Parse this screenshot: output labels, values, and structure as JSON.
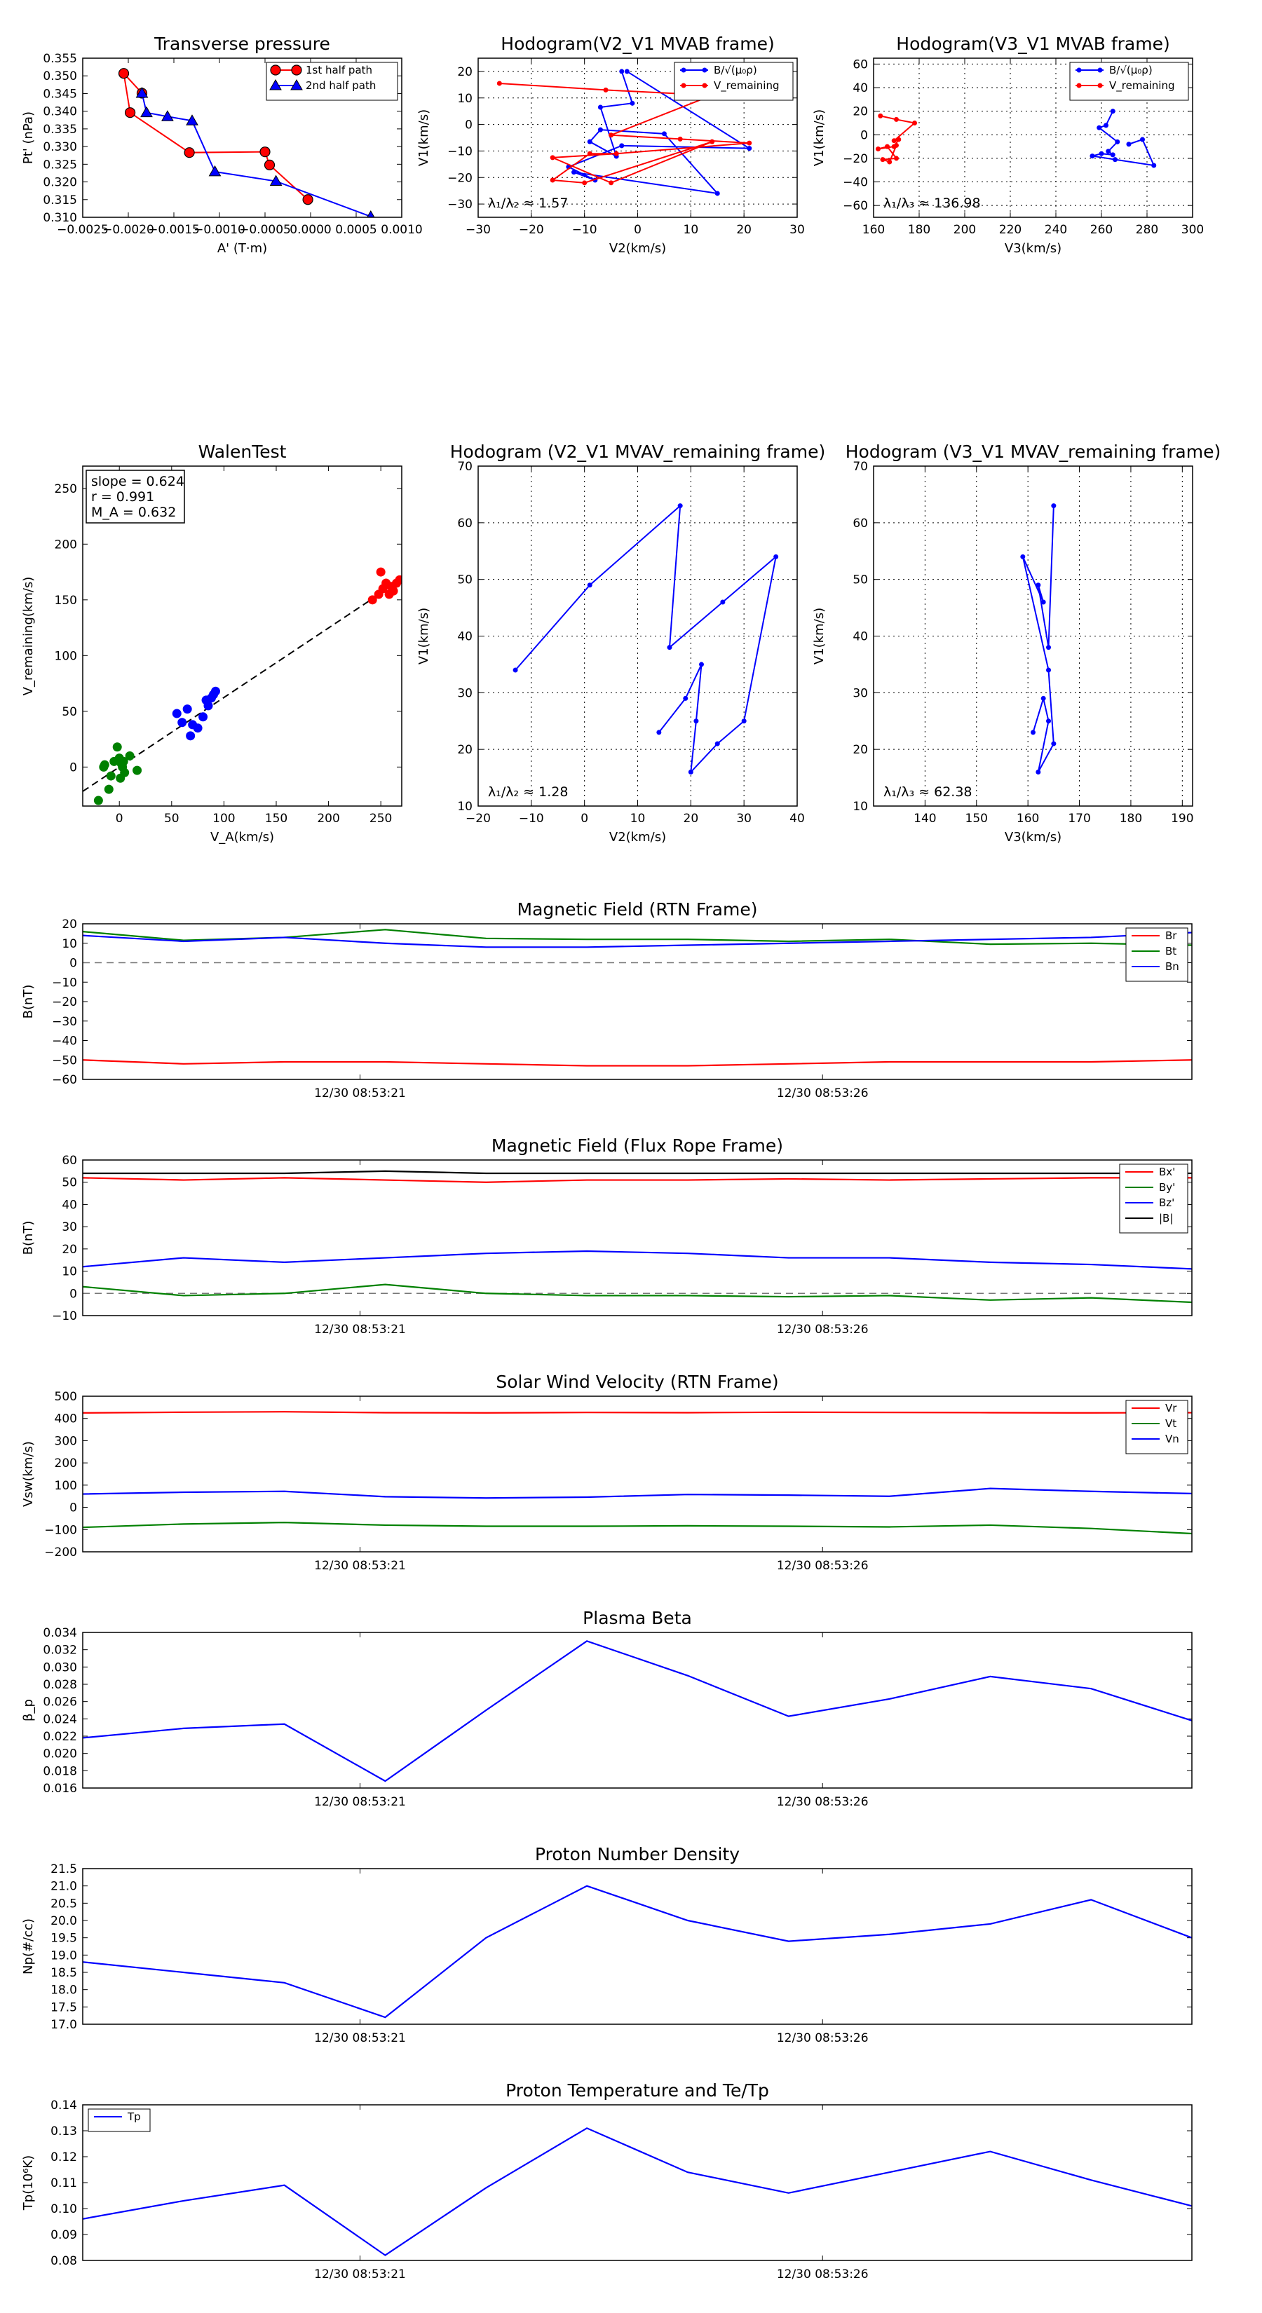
{
  "chart_data": [
    {
      "id": "tp",
      "type": "line",
      "title": "Transverse pressure",
      "xlabel": "A' (T·m)",
      "ylabel": "Pt' (nPa)",
      "xlim": [
        -0.0025,
        0.001
      ],
      "ylim": [
        0.31,
        0.355
      ],
      "xticks": [
        -0.0025,
        -0.002,
        -0.0015,
        -0.001,
        -0.0005,
        0.0,
        0.0005,
        0.001
      ],
      "xtick_labels": [
        "−0.0025",
        "−0.0020",
        "−0.0015",
        "−0.0010",
        "−0.0005",
        "0.0000",
        "0.0005",
        "0.0010"
      ],
      "yticks": [
        0.31,
        0.315,
        0.32,
        0.325,
        0.33,
        0.335,
        0.34,
        0.345,
        0.35,
        0.355
      ],
      "ytick_labels": [
        "0.310",
        "0.315",
        "0.320",
        "0.325",
        "0.330",
        "0.335",
        "0.340",
        "0.345",
        "0.350",
        "0.355"
      ],
      "grid": false,
      "legend": "top-right",
      "series": [
        {
          "name": "1st half path",
          "color": "#ff0000",
          "marker": "circle",
          "x": [
            -3e-05,
            -0.00045,
            -0.0005,
            -0.00133,
            -0.00198,
            -0.00205,
            -0.00185
          ],
          "y": [
            0.315,
            0.3248,
            0.3285,
            0.3283,
            0.3396,
            0.3507,
            0.3451
          ]
        },
        {
          "name": "2nd half path",
          "color": "#0000ff",
          "marker": "triangle",
          "x": [
            -0.00185,
            -0.0018,
            -0.00157,
            -0.0013,
            -0.00105,
            -0.00038,
            0.00066
          ],
          "y": [
            0.3451,
            0.3396,
            0.3385,
            0.3373,
            0.3229,
            0.3202,
            0.3102
          ]
        }
      ]
    },
    {
      "id": "h1",
      "type": "line",
      "title": "Hodogram(V2_V1 MVAB frame)",
      "xlabel": "V2(km/s)",
      "ylabel": "V1(km/s)",
      "xlim": [
        -30,
        30
      ],
      "ylim": [
        -35,
        25
      ],
      "xticks": [
        -30,
        -20,
        -10,
        0,
        10,
        20,
        30
      ],
      "xtick_labels": [
        "−30",
        "−20",
        "−10",
        "0",
        "10",
        "20",
        "30"
      ],
      "yticks": [
        -30,
        -20,
        -10,
        0,
        10,
        20
      ],
      "ytick_labels": [
        "−30",
        "−20",
        "−10",
        "0",
        "10",
        "20"
      ],
      "grid": true,
      "legend": "top-right",
      "annotation": "λ₁/λ₂ ≈ 1.57",
      "series": [
        {
          "name": "B/√(μ₀ρ)",
          "color": "#0000ff",
          "marker": "dot",
          "x": [
            -3,
            -1,
            -7,
            -4,
            -9,
            -7,
            5,
            15,
            -12,
            -8,
            -13,
            -3,
            21,
            -2
          ],
          "y": [
            20,
            8,
            6.5,
            -12,
            -6.5,
            -2,
            -3.5,
            -26,
            -18,
            -21,
            -16,
            -8,
            -9,
            20
          ]
        },
        {
          "name": "V_remaining",
          "color": "#ff0000",
          "marker": "dot",
          "x": [
            -26,
            -6,
            14,
            -5,
            8,
            21,
            -4,
            -9,
            -16,
            -10,
            14,
            -5,
            -16,
            -4
          ],
          "y": [
            15.5,
            13,
            11,
            -4,
            -5.5,
            -7,
            -11,
            -11,
            -21,
            -22,
            -6.5,
            -22,
            -12.5,
            -11
          ]
        }
      ]
    },
    {
      "id": "h2",
      "type": "line",
      "title": "Hodogram(V3_V1 MVAB frame)",
      "xlabel": "V3(km/s)",
      "ylabel": "V1(km/s)",
      "xlim": [
        160,
        300
      ],
      "ylim": [
        -70,
        65
      ],
      "xticks": [
        160,
        180,
        200,
        220,
        240,
        260,
        280,
        300
      ],
      "xtick_labels": [
        "160",
        "180",
        "200",
        "220",
        "240",
        "260",
        "280",
        "300"
      ],
      "yticks": [
        -60,
        -40,
        -20,
        0,
        20,
        40,
        60
      ],
      "ytick_labels": [
        "−60",
        "−40",
        "−20",
        "0",
        "20",
        "40",
        "60"
      ],
      "grid": true,
      "legend": "top-right",
      "annotation": "λ₁/λ₃ ≈ 136.98",
      "series": [
        {
          "name": "B/√(μ₀ρ)",
          "color": "#0000ff",
          "marker": "dot",
          "x": [
            265,
            262,
            259,
            267,
            263,
            265,
            260,
            256,
            266,
            283,
            278,
            272
          ],
          "y": [
            20,
            8,
            6,
            -6,
            -14,
            -17,
            -16,
            -18,
            -21,
            -26,
            -4,
            -8
          ]
        },
        {
          "name": "V_remaining",
          "color": "#ff0000",
          "marker": "dot",
          "x": [
            163,
            170,
            178,
            169,
            171,
            169,
            162,
            166,
            170,
            164,
            167,
            170
          ],
          "y": [
            16,
            13,
            10,
            -5,
            -4,
            -10,
            -12,
            -10,
            -20,
            -21,
            -23,
            -9
          ]
        }
      ]
    },
    {
      "id": "wt",
      "type": "scatter",
      "title": "WalenTest",
      "xlabel": "V_A(km/s)",
      "ylabel": "V_remaining(km/s)",
      "xlim": [
        -35,
        270
      ],
      "ylim": [
        -35,
        270
      ],
      "xticks": [
        0,
        50,
        100,
        150,
        200,
        250
      ],
      "xtick_labels": [
        "0",
        "50",
        "100",
        "150",
        "200",
        "250"
      ],
      "yticks": [
        0,
        50,
        100,
        150,
        200,
        250
      ],
      "ytick_labels": [
        "0",
        "50",
        "100",
        "150",
        "200",
        "250"
      ],
      "grid": false,
      "stats": [
        "slope = 0.624",
        "r = 0.991",
        "M_A = 0.632"
      ],
      "fit": {
        "slope": 0.624,
        "intercept": 0,
        "x": [
          -35,
          255
        ]
      },
      "series": [
        {
          "name": "green",
          "color": "#008000",
          "x": [
            -10,
            -5,
            0,
            2,
            5,
            -8,
            3,
            -15,
            17,
            -2,
            -14,
            10,
            1,
            4,
            -20
          ],
          "y": [
            -20,
            5,
            8,
            3,
            -5,
            -8,
            0,
            0,
            -3,
            18,
            2,
            10,
            -10,
            5,
            -30
          ]
        },
        {
          "name": "blue",
          "color": "#0000ff",
          "x": [
            55,
            65,
            70,
            75,
            80,
            83,
            85,
            88,
            90,
            92,
            60,
            68
          ],
          "y": [
            48,
            52,
            38,
            35,
            45,
            60,
            55,
            62,
            65,
            68,
            40,
            28
          ]
        },
        {
          "name": "red",
          "color": "#ff0000",
          "x": [
            242,
            248,
            252,
            255,
            258,
            260,
            262,
            265,
            250,
            268
          ],
          "y": [
            150,
            155,
            160,
            165,
            155,
            162,
            158,
            165,
            175,
            168
          ]
        }
      ]
    },
    {
      "id": "h3",
      "type": "line",
      "title": "Hodogram (V2_V1 MVAV_remaining frame)",
      "xlabel": "V2(km/s)",
      "ylabel": "V1(km/s)",
      "xlim": [
        -20,
        40
      ],
      "ylim": [
        10,
        70
      ],
      "xticks": [
        -20,
        -10,
        0,
        10,
        20,
        30,
        40
      ],
      "xtick_labels": [
        "−20",
        "−10",
        "0",
        "10",
        "20",
        "30",
        "40"
      ],
      "yticks": [
        10,
        20,
        30,
        40,
        50,
        60,
        70
      ],
      "ytick_labels": [
        "10",
        "20",
        "30",
        "40",
        "50",
        "60",
        "70"
      ],
      "grid": true,
      "annotation": "λ₁/λ₂ ≈ 1.28",
      "series": [
        {
          "name": "V",
          "color": "#0000ff",
          "marker": "dot",
          "x": [
            -13,
            1,
            18,
            16,
            26,
            36,
            30,
            25,
            20,
            21,
            22,
            19,
            14
          ],
          "y": [
            34,
            49,
            63,
            38,
            46,
            54,
            25,
            21,
            16,
            25,
            35,
            29,
            23
          ]
        }
      ]
    },
    {
      "id": "h4",
      "type": "line",
      "title": "Hodogram (V3_V1 MVAV_remaining frame)",
      "xlabel": "V3(km/s)",
      "ylabel": "V1(km/s)",
      "xlim": [
        130,
        192
      ],
      "ylim": [
        10,
        70
      ],
      "xticks": [
        140,
        150,
        160,
        170,
        180,
        190
      ],
      "xtick_labels": [
        "140",
        "150",
        "160",
        "170",
        "180",
        "190"
      ],
      "yticks": [
        10,
        20,
        30,
        40,
        50,
        60,
        70
      ],
      "ytick_labels": [
        "10",
        "20",
        "30",
        "40",
        "50",
        "60",
        "70"
      ],
      "grid": true,
      "annotation": "λ₁/λ₃ ≈ 62.38",
      "series": [
        {
          "name": "V",
          "color": "#0000ff",
          "marker": "dot",
          "x": [
            165,
            164,
            162,
            163,
            159,
            164,
            165,
            162,
            164,
            163,
            161
          ],
          "y": [
            63,
            38,
            49,
            46,
            54,
            34,
            21,
            16,
            25,
            29,
            23
          ]
        }
      ]
    },
    {
      "id": "mfrtn",
      "type": "line",
      "title": "Magnetic Field (RTN Frame)",
      "ylabel": "B(nT)",
      "x_tick_labels": [
        "12/30 08:53:21",
        "12/30 08:53:26"
      ],
      "ylim": [
        -60,
        20
      ],
      "yticks": [
        -60,
        -50,
        -40,
        -30,
        -20,
        -10,
        0,
        10,
        20
      ],
      "ytick_labels": [
        "−60",
        "−50",
        "−40",
        "−30",
        "−20",
        "−10",
        "0",
        "10",
        "20"
      ],
      "zero_line": true,
      "legend": "top-right",
      "series": [
        {
          "name": "Br",
          "color": "#ff0000",
          "values": [
            -50,
            -52,
            -51,
            -51,
            -52,
            -53,
            -53,
            -52,
            -51,
            -51,
            -51,
            -50
          ]
        },
        {
          "name": "Bt",
          "color": "#008000",
          "values": [
            16,
            11.5,
            13,
            17,
            12.5,
            12,
            12,
            11,
            12,
            9.5,
            10,
            9
          ]
        },
        {
          "name": "Bn",
          "color": "#0000ff",
          "values": [
            14,
            11,
            13,
            10,
            8,
            8,
            9,
            10,
            11,
            12,
            13,
            15.5
          ]
        }
      ]
    },
    {
      "id": "mffr",
      "type": "line",
      "title": "Magnetic Field (Flux Rope Frame)",
      "ylabel": "B(nT)",
      "x_tick_labels": [
        "12/30 08:53:21",
        "12/30 08:53:26"
      ],
      "ylim": [
        -10,
        60
      ],
      "yticks": [
        -10,
        0,
        10,
        20,
        30,
        40,
        50,
        60
      ],
      "ytick_labels": [
        "−10",
        "0",
        "10",
        "20",
        "30",
        "40",
        "50",
        "60"
      ],
      "zero_line": true,
      "legend": "top-right",
      "series": [
        {
          "name": "Bx'",
          "color": "#ff0000",
          "values": [
            52,
            51,
            52,
            51,
            50,
            51,
            51,
            51.5,
            51,
            51.5,
            52,
            52
          ]
        },
        {
          "name": "By'",
          "color": "#008000",
          "values": [
            3,
            -1,
            0,
            4,
            0,
            -1,
            -1,
            -1.5,
            -1,
            -3,
            -2,
            -4
          ]
        },
        {
          "name": "Bz'",
          "color": "#0000ff",
          "values": [
            12,
            16,
            14,
            16,
            18,
            19,
            18,
            16,
            16,
            14,
            13,
            11
          ]
        },
        {
          "name": "|B|",
          "color": "#000000",
          "values": [
            54,
            54,
            54,
            55,
            54,
            54,
            54,
            54,
            54,
            54,
            54,
            54
          ]
        }
      ]
    },
    {
      "id": "sw",
      "type": "line",
      "title": "Solar Wind Velocity (RTN Frame)",
      "ylabel": "Vsw(km/s)",
      "x_tick_labels": [
        "12/30 08:53:21",
        "12/30 08:53:26"
      ],
      "ylim": [
        -200,
        500
      ],
      "yticks": [
        -200,
        -100,
        0,
        100,
        200,
        300,
        400,
        500
      ],
      "ytick_labels": [
        "−200",
        "−100",
        "0",
        "100",
        "200",
        "300",
        "400",
        "500"
      ],
      "legend": "top-right",
      "series": [
        {
          "name": "Vr",
          "color": "#ff0000",
          "values": [
            425,
            428,
            430,
            426,
            425,
            427,
            426,
            428,
            427,
            426,
            425,
            426
          ]
        },
        {
          "name": "Vt",
          "color": "#008000",
          "values": [
            -90,
            -75,
            -68,
            -80,
            -85,
            -85,
            -83,
            -85,
            -88,
            -80,
            -95,
            -118
          ]
        },
        {
          "name": "Vn",
          "color": "#0000ff",
          "values": [
            60,
            68,
            72,
            48,
            42,
            46,
            58,
            55,
            50,
            85,
            72,
            62
          ]
        }
      ]
    },
    {
      "id": "beta",
      "type": "line",
      "title": "Plasma Beta",
      "ylabel": "β_p",
      "x_tick_labels": [
        "12/30 08:53:21",
        "12/30 08:53:26"
      ],
      "ylim": [
        0.016,
        0.034
      ],
      "yticks": [
        0.016,
        0.018,
        0.02,
        0.022,
        0.024,
        0.026,
        0.028,
        0.03,
        0.032,
        0.034
      ],
      "ytick_labels": [
        "0.016",
        "0.018",
        "0.020",
        "0.022",
        "0.024",
        "0.026",
        "0.028",
        "0.030",
        "0.032",
        "0.034"
      ],
      "series": [
        {
          "name": "beta",
          "color": "#0000ff",
          "values": [
            0.0218,
            0.0229,
            0.0234,
            0.0168,
            0.025,
            0.033,
            0.029,
            0.0243,
            0.0263,
            0.0289,
            0.0275,
            0.0238
          ]
        }
      ]
    },
    {
      "id": "np",
      "type": "line",
      "title": "Proton Number Density",
      "ylabel": "Np(#/cc)",
      "x_tick_labels": [
        "12/30 08:53:21",
        "12/30 08:53:26"
      ],
      "ylim": [
        17.0,
        21.5
      ],
      "yticks": [
        17.0,
        17.5,
        18.0,
        18.5,
        19.0,
        19.5,
        20.0,
        20.5,
        21.0,
        21.5
      ],
      "ytick_labels": [
        "17.0",
        "17.5",
        "18.0",
        "18.5",
        "19.0",
        "19.5",
        "20.0",
        "20.5",
        "21.0",
        "21.5"
      ],
      "series": [
        {
          "name": "Np",
          "color": "#0000ff",
          "values": [
            18.8,
            18.5,
            18.2,
            17.2,
            19.5,
            21.0,
            20.0,
            19.4,
            19.6,
            19.9,
            20.6,
            19.5
          ]
        }
      ]
    },
    {
      "id": "tp2",
      "type": "line",
      "title": "Proton Temperature and Te/Tp",
      "ylabel": "Tp(10⁶K)",
      "x_tick_labels": [
        "12/30 08:53:21",
        "12/30 08:53:26"
      ],
      "ylim": [
        0.08,
        0.14
      ],
      "yticks": [
        0.08,
        0.09,
        0.1,
        0.11,
        0.12,
        0.13,
        0.14
      ],
      "ytick_labels": [
        "0.08",
        "0.09",
        "0.10",
        "0.11",
        "0.12",
        "0.13",
        "0.14"
      ],
      "legend": "top-left",
      "series": [
        {
          "name": "Tp",
          "color": "#0000ff",
          "values": [
            0.096,
            0.103,
            0.109,
            0.082,
            0.108,
            0.131,
            0.114,
            0.106,
            0.114,
            0.122,
            0.111,
            0.101
          ]
        }
      ]
    }
  ]
}
